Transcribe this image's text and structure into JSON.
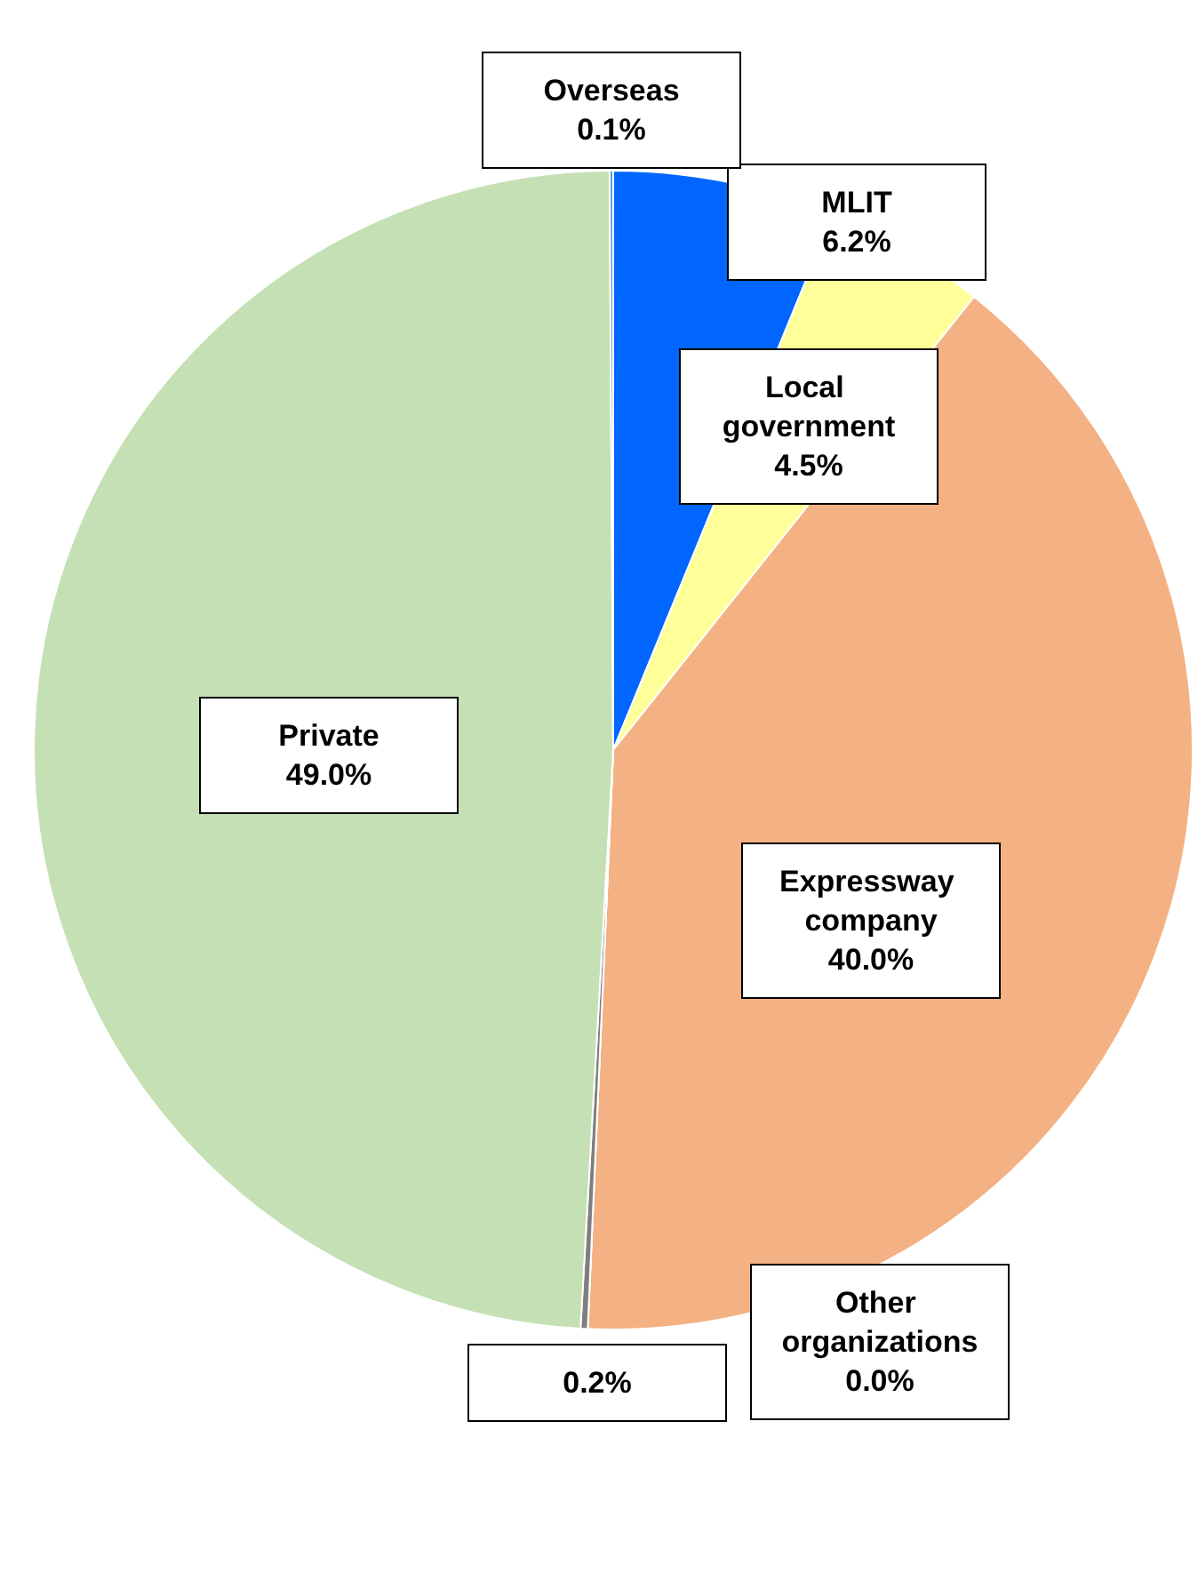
{
  "chart_data": {
    "type": "pie",
    "categories": [
      "MLIT",
      "Local government",
      "Expressway company",
      "Other organizations",
      null,
      "Private",
      "Overseas"
    ],
    "values": [
      6.2,
      4.5,
      40.0,
      0.0,
      0.2,
      49.0,
      0.1
    ],
    "value_labels": [
      "6.2%",
      "4.5%",
      "40.0%",
      "0.0%",
      "0.2%",
      "49.0%",
      "0.1%"
    ],
    "colors": [
      "#0066ff",
      "#ffff99",
      "#f4b183",
      "#a5a5a5",
      "#7f7f7f",
      "#c5e0b4",
      "#5b9bd5"
    ],
    "legend": false
  }
}
